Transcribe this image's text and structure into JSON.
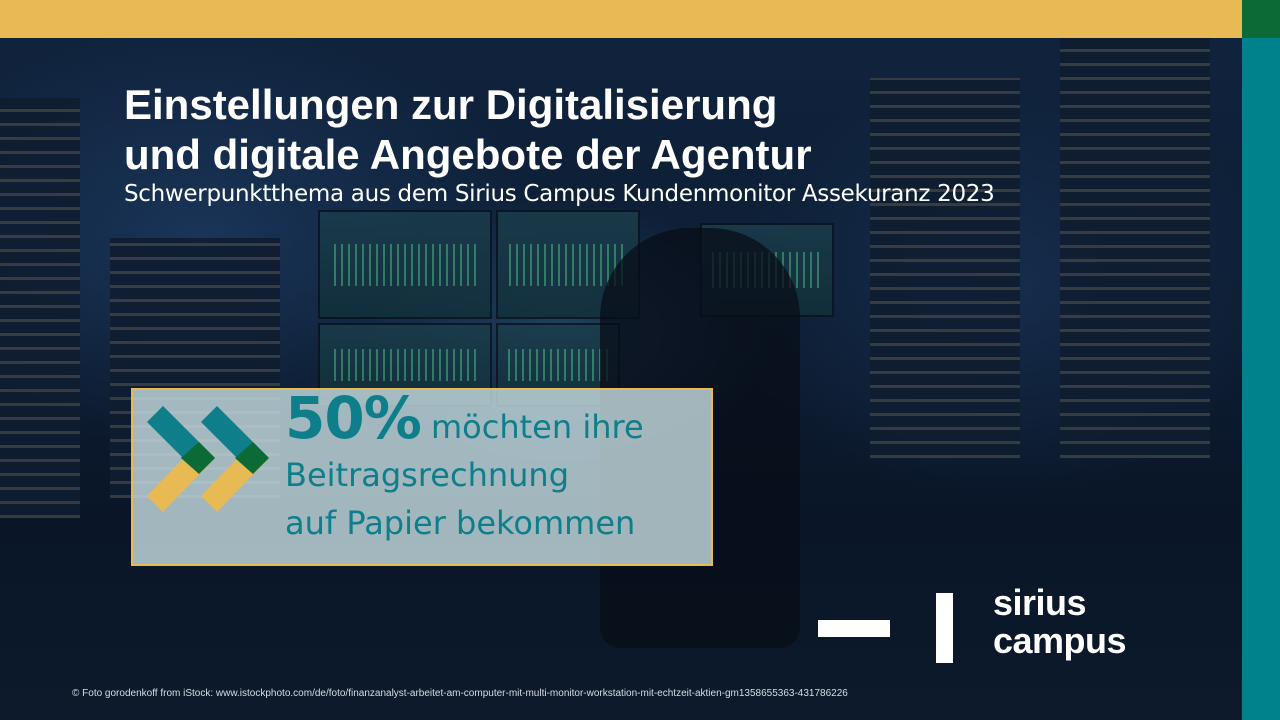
{
  "colors": {
    "gold": "#E8BA53",
    "dark_green": "#0B6A35",
    "teal": "#00828C",
    "text_teal": "#0E7F8A"
  },
  "header": {
    "title_line1": "Einstellungen zur Digitalisierung",
    "title_line2": "und digitale Angebote der Agentur",
    "subtitle": "Schwerpunktthema aus dem Sirius Campus Kundenmonitor Assekuranz 2023"
  },
  "highlight": {
    "icon": "double-chevron-right-icon",
    "percent": "50%",
    "line1_rest": "möchten ihre",
    "line2": "Beitragsrechnung",
    "line3": "auf Papier bekommen"
  },
  "logo": {
    "line1": "sirius",
    "line2": "campus"
  },
  "credit": "© Foto gorodenkoff from iStock: www.istockphoto.com/de/foto/finanzanalyst-arbeitet-am-computer-mit-multi-monitor-workstation-mit-echtzeit-aktien-gm1358655363-431786226"
}
